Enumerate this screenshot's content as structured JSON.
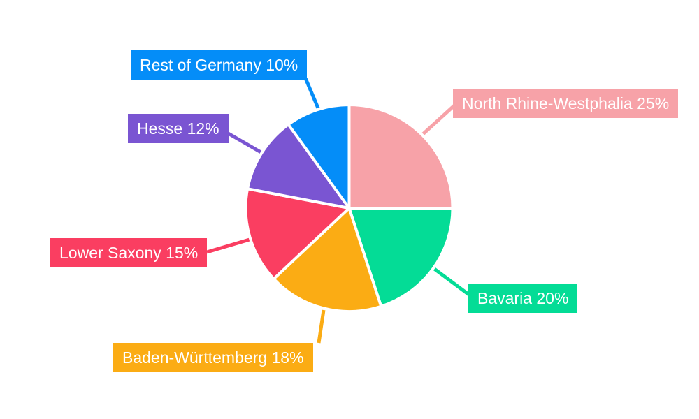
{
  "page": {
    "background_color": "#ffffff"
  },
  "chart_data": {
    "type": "pie",
    "title": "",
    "unit": "%",
    "start_angle": "top",
    "direction": "clockwise",
    "legend_position": "none",
    "label_style": "callout boxes with leader lines, white text on slice-colored background",
    "separator_color": "#ffffff",
    "slices": [
      {
        "name": "North Rhine-Westphalia",
        "value": 25,
        "label_text": "North Rhine-Westphalia 25%",
        "color": "#F7A2A8"
      },
      {
        "name": "Bavaria",
        "value": 20,
        "label_text": "Bavaria 20%",
        "color": "#04DC96"
      },
      {
        "name": "Baden-Württemberg",
        "value": 18,
        "label_text": "Baden-Württemberg 18%",
        "color": "#FBAC14"
      },
      {
        "name": "Lower Saxony",
        "value": 15,
        "label_text": "Lower Saxony 15%",
        "color": "#FA3E61"
      },
      {
        "name": "Hesse",
        "value": 12,
        "label_text": "Hesse 12%",
        "color": "#7A55D2"
      },
      {
        "name": "Rest of Germany",
        "value": 10,
        "label_text": "Rest of Germany 10%",
        "color": "#048DF8"
      }
    ]
  }
}
